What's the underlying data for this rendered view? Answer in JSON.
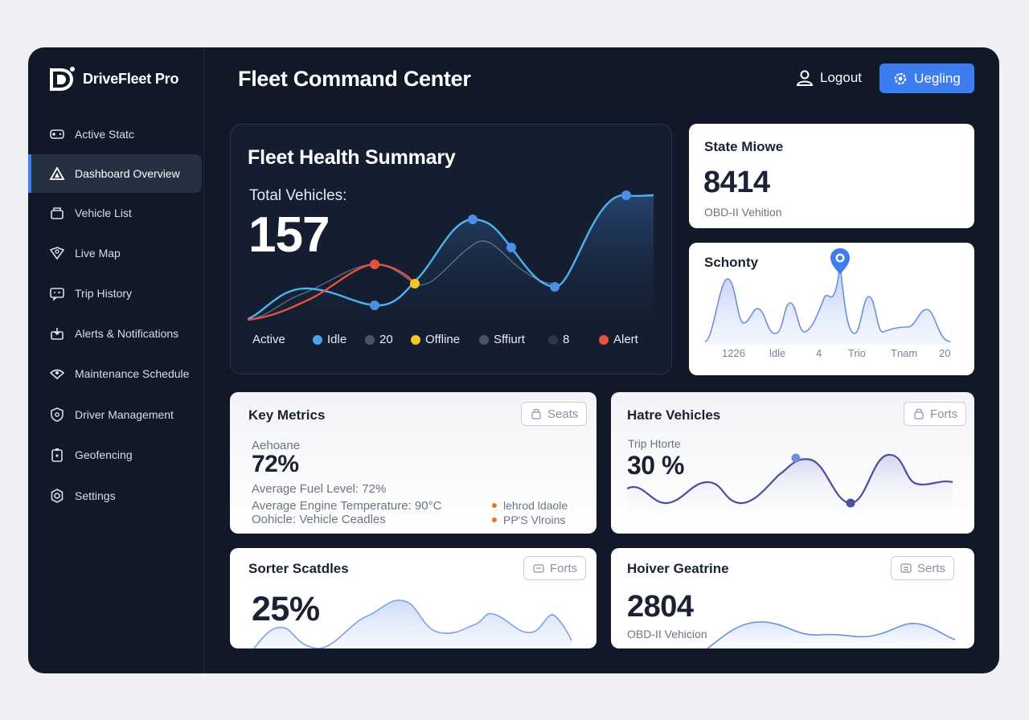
{
  "brand": {
    "name": "DriveFleet Pro",
    "logo_icon": "drivefleet-logo-icon"
  },
  "sidebar": {
    "items": [
      {
        "label": "Active Statc",
        "icon": "gamepad-icon",
        "active": false
      },
      {
        "label": "Dashboard Overview",
        "icon": "dashboard-triangle-icon",
        "active": true
      },
      {
        "label": "Vehicle List",
        "icon": "vehicle-list-icon",
        "active": false
      },
      {
        "label": "Live Map",
        "icon": "map-pin-icon",
        "active": false
      },
      {
        "label": "Trip History",
        "icon": "trip-history-icon",
        "active": false
      },
      {
        "label": "Alerts & Notifications",
        "icon": "bell-icon",
        "active": false
      },
      {
        "label": "Maintenance Schedule",
        "icon": "wrench-icon",
        "active": false
      },
      {
        "label": "Driver Management",
        "icon": "driver-icon",
        "active": false
      },
      {
        "label": "Geofencing",
        "icon": "geofence-icon",
        "active": false
      },
      {
        "label": "Settings",
        "icon": "gear-icon",
        "active": false
      }
    ]
  },
  "header": {
    "title": "Fleet Command Center",
    "logout_label": "Logout",
    "primary_label": "Uegling"
  },
  "health": {
    "title": "Fleet Health Summary",
    "total_label": "Total Vehicles:",
    "total_value": "157",
    "legend": [
      {
        "label": "Active",
        "color": ""
      },
      {
        "label": "Idle",
        "color": "#4aa3e8"
      },
      {
        "label": "20",
        "color": "#4a5568"
      },
      {
        "label": "Offline",
        "color": "#f3c623"
      },
      {
        "label": "Sffiurt",
        "color": "#4a5568"
      },
      {
        "label": "8",
        "color": "#2d3748"
      },
      {
        "label": "Alert",
        "color": "#e5533d"
      }
    ]
  },
  "state_card": {
    "title": "State Miowe",
    "value": "8414",
    "subtitle": "OBD-II Vehition"
  },
  "schonty_card": {
    "title": "Schonty",
    "axis_labels": [
      "1226",
      "ldle",
      "4",
      "Trio",
      "Tnam",
      "20"
    ]
  },
  "key_metrics": {
    "title": "Key Metrics",
    "button_label": "Seats",
    "metric_label": "Aehoane",
    "metric_value": "72%",
    "lines": [
      "Average Fuel Level: 72%",
      "Average Engine Temperature: 90°C",
      "Oohicle: Vehicle Ceadles"
    ],
    "bullets": [
      "lehrod ldaole",
      "PP'S Vlroins"
    ]
  },
  "hatre_vehicles": {
    "title": "Hatre Vehicles",
    "button_label": "Forts",
    "label": "Trip Htorte",
    "value": "30 %"
  },
  "sorter_card": {
    "title": "Sorter Scatdles",
    "button_label": "Forts",
    "value": "25%"
  },
  "hoiver_card": {
    "title": "Hoiver Geatrine",
    "button_label": "Serts",
    "value": "2804",
    "subtitle": "OBD-II Vehicion"
  },
  "colors": {
    "accent": "#3d7df0",
    "app_bg": "#111827",
    "card_dark": "#141e30",
    "line_blue": "#4fb3ee",
    "line_red": "#e5533d",
    "line_purple": "#4a4f9e"
  }
}
